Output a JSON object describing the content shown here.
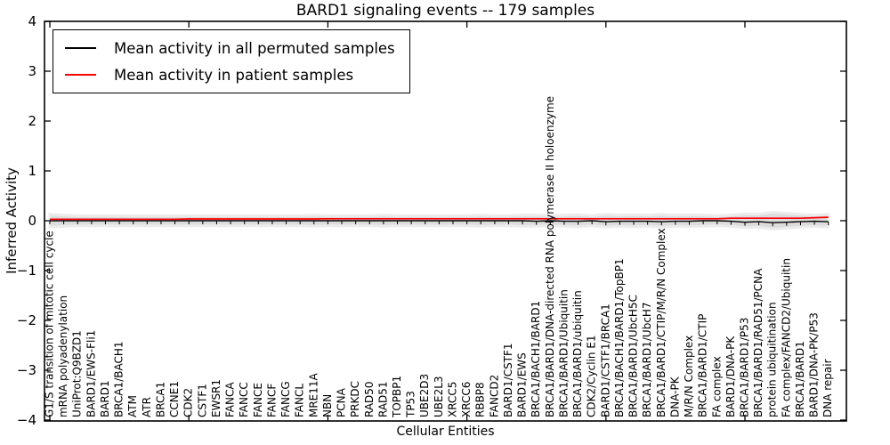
{
  "title": "BARD1 signaling events -- 179 samples",
  "legend": {
    "items": [
      {
        "label": "Mean activity in all permuted samples",
        "color": "#000000"
      },
      {
        "label": "Mean activity in patient samples",
        "color": "#ff0000"
      }
    ],
    "position": "upper left"
  },
  "chart_data": {
    "type": "line",
    "title": "BARD1 signaling events -- 179 samples",
    "xlabel": "Cellular Entities",
    "ylabel": "Inferred Activity",
    "ylim": [
      -4,
      4
    ],
    "yticks": [
      4,
      3,
      2,
      1,
      0,
      -1,
      -2,
      -3,
      -4
    ],
    "grid": false,
    "legend_position": "upper left",
    "frame_color": "#000000",
    "top_tick_entities": [
      0,
      10,
      20,
      30,
      40,
      50
    ],
    "categories": [
      "G1/S transition of mitotic cell cycle",
      "mRNA polyadenylation",
      "UniProt:Q9BZD1",
      "BARD1/EWS-Fli1",
      "BARD1",
      "BRCA1/BACH1",
      "ATM",
      "ATR",
      "BRCA1",
      "CCNE1",
      "CDK2",
      "CSTF1",
      "EWSR1",
      "FANCA",
      "FANCC",
      "FANCE",
      "FANCF",
      "FANCG",
      "FANCL",
      "MRE11A",
      "NBN",
      "PCNA",
      "PRKDC",
      "RAD50",
      "RAD51",
      "TOPBP1",
      "TP53",
      "UBE2D3",
      "UBE2L3",
      "XRCC5",
      "XRCC6",
      "RBBP8",
      "FANCD2",
      "BARD1/CSTF1",
      "BARD1/EWS",
      "BRCA1/BACH1/BARD1",
      "BRCA1/BARD1/DNA-directed RNA polymerase II holoenzyme",
      "BRCA1/BARD1/Ubiquitin",
      "BRCA1/BARD1/ubiquitin",
      "CDK2/Cyclin E1",
      "BARD1/CSTF1/BRCA1",
      "BRCA1/BACH1/BARD1/TopBP1",
      "BRCA1/BARD1/UbcH5C",
      "BRCA1/BARD1/UbcH7",
      "BRCA1/BARD1/CTIP/M/R/N Complex",
      "DNA-PK",
      "M/R/N Complex",
      "BRCA1/BARD1/CTIP",
      "FA complex",
      "BARD1/DNA-PK",
      "BRCA1/BARD1/P53",
      "BRCA1/BARD1/RAD51/PCNA",
      "protein ubiquitination",
      "FA complex/FANCD2/Ubiquitin",
      "BRCA1/BARD1",
      "BARD1/DNA-PK/P53",
      "DNA repair"
    ],
    "series": [
      {
        "name": "Mean activity in all permuted samples",
        "color": "#000000",
        "marker": "tick-down",
        "values": [
          0,
          0,
          0,
          0,
          0,
          0,
          0,
          0,
          0,
          0,
          0,
          0,
          0,
          0,
          0,
          0,
          0,
          0,
          0,
          0,
          0,
          0,
          0,
          0,
          0,
          0,
          0,
          0,
          0,
          0,
          0,
          0,
          0,
          0,
          0,
          -0.01,
          0,
          -0.01,
          -0.01,
          0,
          -0.02,
          -0.01,
          -0.01,
          -0.01,
          -0.02,
          -0.01,
          -0.01,
          0,
          0,
          -0.01,
          -0.03,
          -0.02,
          -0.04,
          -0.03,
          -0.02,
          -0.01,
          -0.02
        ]
      },
      {
        "name": "Mean activity in patient samples",
        "color": "#ff0000",
        "marker": "none",
        "values": [
          0.03,
          0.03,
          0.03,
          0.03,
          0.03,
          0.03,
          0.03,
          0.03,
          0.03,
          0.03,
          0.035,
          0.035,
          0.035,
          0.035,
          0.035,
          0.035,
          0.035,
          0.035,
          0.035,
          0.035,
          0.04,
          0.04,
          0.04,
          0.04,
          0.04,
          0.04,
          0.04,
          0.04,
          0.04,
          0.04,
          0.04,
          0.04,
          0.04,
          0.04,
          0.04,
          0.04,
          0.04,
          0.04,
          0.04,
          0.04,
          0.04,
          0.04,
          0.04,
          0.04,
          0.04,
          0.04,
          0.04,
          0.04,
          0.04,
          0.05,
          0.05,
          0.05,
          0.05,
          0.05,
          0.05,
          0.06,
          0.07
        ]
      }
    ],
    "band": {
      "name": "permuted samples spread",
      "color": "#dcdcdc",
      "edge_color": "#ececec",
      "center": 0,
      "half_widths": [
        0.13,
        0.11,
        0.1,
        0.1,
        0.1,
        0.1,
        0.1,
        0.1,
        0.1,
        0.1,
        0.1,
        0.1,
        0.1,
        0.1,
        0.1,
        0.1,
        0.1,
        0.1,
        0.1,
        0.11,
        0.1,
        0.1,
        0.1,
        0.1,
        0.11,
        0.1,
        0.1,
        0.1,
        0.1,
        0.1,
        0.1,
        0.11,
        0.1,
        0.1,
        0.11,
        0.11,
        0.1,
        0.11,
        0.12,
        0.1,
        0.13,
        0.11,
        0.12,
        0.11,
        0.13,
        0.11,
        0.12,
        0.11,
        0.1,
        0.11,
        0.14,
        0.13,
        0.17,
        0.15,
        0.13,
        0.11,
        0.13
      ]
    }
  }
}
